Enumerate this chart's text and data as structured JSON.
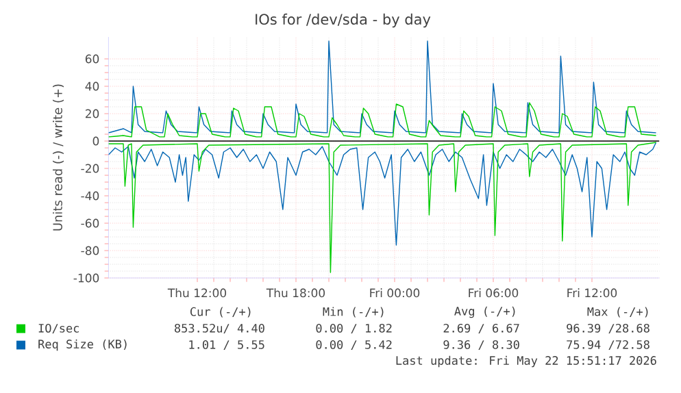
{
  "chart_data": {
    "type": "line",
    "title": "IOs for /dev/sda - by day",
    "ylabel": "Units read (-) / write (+)",
    "xlim": [
      "2026-05-21T06:36",
      "2026-05-22T16:06"
    ],
    "ylim": [
      -100,
      76
    ],
    "xticks": [
      {
        "value": "2026-05-21T12:00",
        "label": "Thu 12:00"
      },
      {
        "value": "2026-05-21T18:00",
        "label": "Thu 18:00"
      },
      {
        "value": "2026-05-22T00:00",
        "label": "Fri 00:00"
      },
      {
        "value": "2026-05-22T06:00",
        "label": "Fri 06:00"
      },
      {
        "value": "2026-05-22T12:00",
        "label": "Fri 12:00"
      }
    ],
    "yticks": [
      -100,
      -80,
      -60,
      -40,
      -20,
      0,
      20,
      40,
      60
    ],
    "grid": true,
    "legend": "bottom",
    "ref_lines": [
      {
        "axis": "y",
        "value": 0,
        "color": "#000000"
      }
    ],
    "series": [
      {
        "name": "Req Size (KB)",
        "color": "#0066b3",
        "x": [
          "2026-05-21T06:36",
          "2026-05-21T07:30",
          "2026-05-21T08:00",
          "2026-05-21T08:06",
          "2026-05-21T08:24",
          "2026-05-21T08:48",
          "2026-05-21T09:54",
          "2026-05-21T10:06",
          "2026-05-21T10:24",
          "2026-05-21T10:48",
          "2026-05-21T12:00",
          "2026-05-21T12:06",
          "2026-05-21T12:24",
          "2026-05-21T12:48",
          "2026-05-21T14:00",
          "2026-05-21T14:06",
          "2026-05-21T14:24",
          "2026-05-21T14:48",
          "2026-05-21T15:54",
          "2026-05-21T16:00",
          "2026-05-21T16:18",
          "2026-05-21T16:42",
          "2026-05-21T17:54",
          "2026-05-21T18:00",
          "2026-05-21T18:18",
          "2026-05-21T18:42",
          "2026-05-21T19:54",
          "2026-05-21T20:00",
          "2026-05-21T20:18",
          "2026-05-21T20:42",
          "2026-05-21T21:54",
          "2026-05-21T22:00",
          "2026-05-21T22:18",
          "2026-05-21T22:42",
          "2026-05-21T23:54",
          "2026-05-22T00:00",
          "2026-05-22T00:18",
          "2026-05-22T00:42",
          "2026-05-22T01:54",
          "2026-05-22T02:00",
          "2026-05-22T02:18",
          "2026-05-22T02:42",
          "2026-05-22T04:00",
          "2026-05-22T04:06",
          "2026-05-22T04:24",
          "2026-05-22T04:48",
          "2026-05-22T05:54",
          "2026-05-22T06:00",
          "2026-05-22T06:18",
          "2026-05-22T06:42",
          "2026-05-22T08:00",
          "2026-05-22T08:06",
          "2026-05-22T08:24",
          "2026-05-22T08:48",
          "2026-05-22T10:00",
          "2026-05-22T10:06",
          "2026-05-22T10:24",
          "2026-05-22T10:48",
          "2026-05-22T12:00",
          "2026-05-22T12:06",
          "2026-05-22T12:24",
          "2026-05-22T12:48",
          "2026-05-22T14:00",
          "2026-05-22T14:06",
          "2026-05-22T14:24",
          "2026-05-22T14:48",
          "2026-05-22T15:54"
        ],
        "values": [
          6,
          9,
          6,
          40,
          12,
          7,
          6,
          22,
          12,
          7,
          6,
          25,
          12,
          7,
          6,
          22,
          12,
          7,
          6,
          20,
          12,
          7,
          6,
          27,
          12,
          7,
          6,
          73,
          12,
          7,
          6,
          20,
          12,
          7,
          6,
          22,
          12,
          7,
          6,
          73,
          12,
          7,
          6,
          20,
          12,
          7,
          6,
          42,
          12,
          7,
          6,
          28,
          12,
          7,
          6,
          62,
          12,
          7,
          6,
          43,
          12,
          7,
          6,
          22,
          12,
          7,
          6
        ]
      },
      {
        "name": "IO/sec",
        "color": "#00cc00",
        "x": [
          "2026-05-21T06:36",
          "2026-05-21T07:30",
          "2026-05-21T08:00",
          "2026-05-21T08:12",
          "2026-05-21T08:36",
          "2026-05-21T08:54",
          "2026-05-21T09:42",
          "2026-05-21T10:00",
          "2026-05-21T10:12",
          "2026-05-21T10:30",
          "2026-05-21T10:54",
          "2026-05-21T11:42",
          "2026-05-21T12:00",
          "2026-05-21T12:12",
          "2026-05-21T12:30",
          "2026-05-21T12:54",
          "2026-05-21T13:42",
          "2026-05-21T14:00",
          "2026-05-21T14:12",
          "2026-05-21T14:30",
          "2026-05-21T14:54",
          "2026-05-21T15:36",
          "2026-05-21T15:54",
          "2026-05-21T16:06",
          "2026-05-21T16:30",
          "2026-05-21T16:54",
          "2026-05-21T17:42",
          "2026-05-21T18:00",
          "2026-05-21T18:12",
          "2026-05-21T18:30",
          "2026-05-21T18:54",
          "2026-05-21T19:42",
          "2026-05-21T20:00",
          "2026-05-21T20:12",
          "2026-05-21T20:30",
          "2026-05-21T20:54",
          "2026-05-21T21:36",
          "2026-05-21T21:54",
          "2026-05-21T22:06",
          "2026-05-21T22:24",
          "2026-05-21T22:48",
          "2026-05-21T23:36",
          "2026-05-21T23:54",
          "2026-05-22T00:06",
          "2026-05-22T00:30",
          "2026-05-22T00:54",
          "2026-05-22T01:36",
          "2026-05-22T01:54",
          "2026-05-22T02:06",
          "2026-05-22T02:24",
          "2026-05-22T02:48",
          "2026-05-22T03:42",
          "2026-05-22T04:00",
          "2026-05-22T04:12",
          "2026-05-22T04:30",
          "2026-05-22T04:54",
          "2026-05-22T05:36",
          "2026-05-22T05:54",
          "2026-05-22T06:06",
          "2026-05-22T06:30",
          "2026-05-22T06:54",
          "2026-05-22T07:42",
          "2026-05-22T08:00",
          "2026-05-22T08:12",
          "2026-05-22T08:30",
          "2026-05-22T08:54",
          "2026-05-22T09:42",
          "2026-05-22T10:00",
          "2026-05-22T10:12",
          "2026-05-22T10:30",
          "2026-05-22T10:54",
          "2026-05-22T11:42",
          "2026-05-22T12:00",
          "2026-05-22T12:12",
          "2026-05-22T12:30",
          "2026-05-22T12:54",
          "2026-05-22T13:42",
          "2026-05-22T14:00",
          "2026-05-22T14:12",
          "2026-05-22T14:36",
          "2026-05-22T15:00",
          "2026-05-22T15:54"
        ],
        "values": [
          3,
          4,
          3,
          25,
          25,
          8,
          3,
          3,
          20,
          12,
          4,
          3,
          3,
          20,
          20,
          5,
          3,
          3,
          24,
          22,
          5,
          3,
          3,
          25,
          25,
          5,
          3,
          3,
          20,
          18,
          5,
          3,
          3,
          17,
          12,
          4,
          3,
          3,
          24,
          20,
          5,
          3,
          3,
          27,
          25,
          5,
          3,
          3,
          15,
          10,
          4,
          3,
          3,
          22,
          18,
          4,
          3,
          3,
          25,
          22,
          5,
          3,
          3,
          28,
          22,
          5,
          3,
          3,
          20,
          18,
          5,
          3,
          3,
          25,
          22,
          5,
          3,
          3,
          25,
          25,
          5,
          4
        ]
      },
      {
        "color": "#0066b3",
        "x": [
          "2026-05-21T06:36",
          "2026-05-21T07:00",
          "2026-05-21T07:24",
          "2026-05-21T07:48",
          "2026-05-21T08:10",
          "2026-05-21T08:24",
          "2026-05-21T08:48",
          "2026-05-21T09:12",
          "2026-05-21T09:34",
          "2026-05-21T09:54",
          "2026-05-21T10:18",
          "2026-05-21T10:40",
          "2026-05-21T10:54",
          "2026-05-21T11:06",
          "2026-05-21T11:18",
          "2026-05-21T11:27",
          "2026-05-21T11:48",
          "2026-05-21T12:06",
          "2026-05-21T12:30",
          "2026-05-21T12:54",
          "2026-05-21T13:18",
          "2026-05-21T13:36",
          "2026-05-21T14:00",
          "2026-05-21T14:24",
          "2026-05-21T14:48",
          "2026-05-21T15:12",
          "2026-05-21T15:36",
          "2026-05-21T16:00",
          "2026-05-21T16:24",
          "2026-05-21T16:48",
          "2026-05-21T17:12",
          "2026-05-21T17:30",
          "2026-05-21T18:00",
          "2026-05-21T18:24",
          "2026-05-21T18:48",
          "2026-05-21T19:12",
          "2026-05-21T19:36",
          "2026-05-21T20:00",
          "2026-05-21T20:30",
          "2026-05-21T20:54",
          "2026-05-21T21:18",
          "2026-05-21T21:42",
          "2026-05-21T22:04",
          "2026-05-21T22:24",
          "2026-05-21T22:48",
          "2026-05-21T23:06",
          "2026-05-21T23:24",
          "2026-05-21T23:48",
          "2026-05-22T00:06",
          "2026-05-22T00:24",
          "2026-05-22T00:48",
          "2026-05-22T01:12",
          "2026-05-22T01:36",
          "2026-05-22T02:06",
          "2026-05-22T02:30",
          "2026-05-22T02:54",
          "2026-05-22T03:18",
          "2026-05-22T03:42",
          "2026-05-22T04:06",
          "2026-05-22T04:36",
          "2026-05-22T05:06",
          "2026-05-22T05:24",
          "2026-05-22T05:36",
          "2026-05-22T06:00",
          "2026-05-22T06:24",
          "2026-05-22T06:48",
          "2026-05-22T07:12",
          "2026-05-22T07:36",
          "2026-05-22T08:00",
          "2026-05-22T08:24",
          "2026-05-22T08:48",
          "2026-05-22T09:12",
          "2026-05-22T09:36",
          "2026-05-22T10:00",
          "2026-05-22T10:24",
          "2026-05-22T10:48",
          "2026-05-22T11:06",
          "2026-05-22T11:24",
          "2026-05-22T11:42",
          "2026-05-22T12:00",
          "2026-05-22T12:18",
          "2026-05-22T12:36",
          "2026-05-22T12:54",
          "2026-05-22T13:18",
          "2026-05-22T13:42",
          "2026-05-22T14:00",
          "2026-05-22T14:18",
          "2026-05-22T14:36",
          "2026-05-22T14:54",
          "2026-05-22T15:18",
          "2026-05-22T15:42",
          "2026-05-22T15:54"
        ],
        "values": [
          -10,
          -5,
          -8,
          -4,
          -27,
          -8,
          -15,
          -6,
          -18,
          -8,
          -12,
          -30,
          -10,
          -25,
          -12,
          -44,
          -10,
          -14,
          -6,
          -10,
          -27,
          -8,
          -5,
          -12,
          -6,
          -15,
          -10,
          -20,
          -8,
          -15,
          -50,
          -12,
          -25,
          -8,
          -6,
          -10,
          -4,
          -15,
          -25,
          -10,
          -6,
          -5,
          -50,
          -12,
          -8,
          -15,
          -27,
          -10,
          -76,
          -12,
          -6,
          -15,
          -8,
          -25,
          -10,
          -6,
          -15,
          -8,
          -12,
          -28,
          -42,
          -10,
          -47,
          -8,
          -20,
          -10,
          -15,
          -6,
          -10,
          -15,
          -8,
          -12,
          -6,
          -15,
          -25,
          -10,
          -20,
          -37,
          -12,
          -70,
          -15,
          -20,
          -50,
          -10,
          -15,
          -8,
          -20,
          -25,
          -8,
          -10,
          -6,
          -1
        ]
      },
      {
        "color": "#00cc00",
        "x": [
          "2026-05-21T06:36",
          "2026-05-21T07:30",
          "2026-05-21T07:36",
          "2026-05-21T07:48",
          "2026-05-21T08:00",
          "2026-05-21T08:06",
          "2026-05-21T08:18",
          "2026-05-21T08:42",
          "2026-05-21T12:00",
          "2026-05-21T12:06",
          "2026-05-21T12:18",
          "2026-05-21T12:42",
          "2026-05-21T20:00",
          "2026-05-21T20:06",
          "2026-05-21T20:18",
          "2026-05-21T20:42",
          "2026-05-22T02:00",
          "2026-05-22T02:06",
          "2026-05-22T02:18",
          "2026-05-22T02:42",
          "2026-05-22T03:36",
          "2026-05-22T03:42",
          "2026-05-22T03:54",
          "2026-05-22T04:18",
          "2026-05-22T06:00",
          "2026-05-22T06:06",
          "2026-05-22T06:18",
          "2026-05-22T06:42",
          "2026-05-22T08:06",
          "2026-05-22T08:12",
          "2026-05-22T08:24",
          "2026-05-22T08:48",
          "2026-05-22T10:06",
          "2026-05-22T10:12",
          "2026-05-22T10:24",
          "2026-05-22T10:48",
          "2026-05-22T14:06",
          "2026-05-22T14:12",
          "2026-05-22T14:24",
          "2026-05-22T14:48",
          "2026-05-22T15:54"
        ],
        "values": [
          -2,
          -2,
          -33,
          -3,
          -2,
          -63,
          -8,
          -3,
          -2,
          -22,
          -8,
          -3,
          -2,
          -96,
          -8,
          -3,
          -2,
          -54,
          -8,
          -3,
          -2,
          -37,
          -8,
          -3,
          -2,
          -69,
          -8,
          -3,
          -2,
          -26,
          -8,
          -3,
          -2,
          -73,
          -8,
          -3,
          -2,
          -47,
          -8,
          -3,
          -1
        ]
      }
    ],
    "annotations": [
      "Cur (-/+)",
      "Min (-/+)",
      "Avg (-/+)",
      "Max (-/+)",
      "853.52u/ 4.40",
      "0.00 / 1.82",
      "2.69 / 6.67",
      "96.39 /28.68",
      "1.01 / 5.55",
      "0.00 / 5.42",
      "9.36 / 8.30",
      "75.94 /72.58",
      "Last update: Fri May 22 15:51:17 2026"
    ]
  }
}
